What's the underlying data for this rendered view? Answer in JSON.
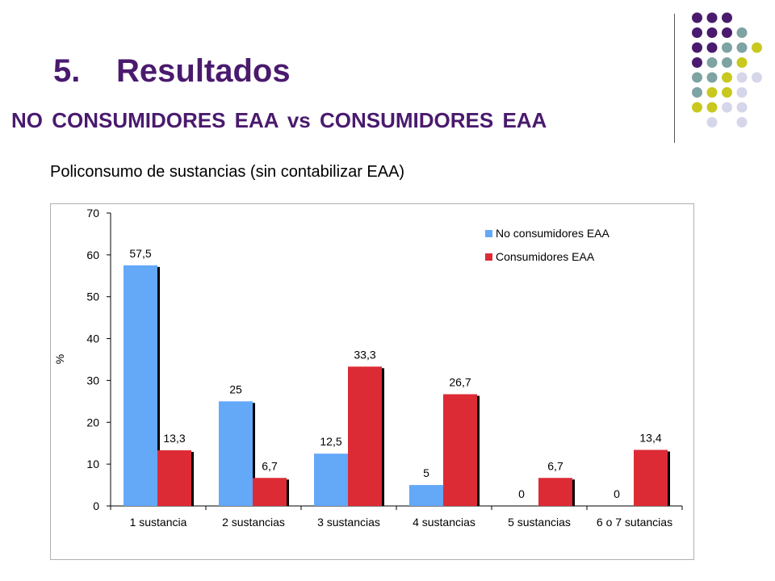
{
  "slide": {
    "number": "5.",
    "title": "Resultados",
    "subtitle": "NO CONSUMIDORES EAA vs CONSUMIDORES EAA",
    "description": "Policonsumo de sustancias (sin contabilizar EAA)"
  },
  "decoration": {
    "dot_colors": {
      "purple": "#4a1a6e",
      "teal": "#7ea3a3",
      "lime": "#c8c81e",
      "lavender": "#d6d6ea"
    },
    "dot_grid": [
      [
        "",
        "purple",
        "purple",
        "purple",
        ""
      ],
      [
        "",
        "purple",
        "purple",
        "purple",
        "teal"
      ],
      [
        "",
        "purple",
        "purple",
        "teal",
        "teal",
        "lime"
      ],
      [
        "",
        "purple",
        "teal",
        "teal",
        "lime",
        ""
      ],
      [
        "",
        "teal",
        "teal",
        "lime",
        "lavender",
        "lavender"
      ],
      [
        "",
        "teal",
        "lime",
        "lime",
        "lavender",
        ""
      ],
      [
        "",
        "lime",
        "lime",
        "lavender",
        "lavender",
        ""
      ],
      [
        "",
        "",
        "lavender",
        "",
        "lavender",
        ""
      ]
    ]
  },
  "chart_data": {
    "type": "bar",
    "ylabel": "%",
    "ylim": [
      0,
      70
    ],
    "yticks": [
      0,
      10,
      20,
      30,
      40,
      50,
      60,
      70
    ],
    "grid": false,
    "legend_position": "top-right",
    "categories": [
      "1 sustancia",
      "2 sustancias",
      "3 sustancias",
      "4 sustancias",
      "5 sustancias",
      "6 o 7 sutancias"
    ],
    "series": [
      {
        "name": "No consumidores EAA",
        "color": "#64a8f8",
        "values": [
          57.5,
          25,
          12.5,
          5,
          0,
          0
        ],
        "labels": [
          "57,5",
          "25",
          "12,5",
          "5",
          "0",
          "0"
        ]
      },
      {
        "name": "Consumidores EAA",
        "color": "#dc2b35",
        "values": [
          13.3,
          6.7,
          33.3,
          26.7,
          6.7,
          13.4
        ],
        "labels": [
          "13,3",
          "6,7",
          "33,3",
          "26,7",
          "6,7",
          "13,4"
        ]
      }
    ]
  }
}
